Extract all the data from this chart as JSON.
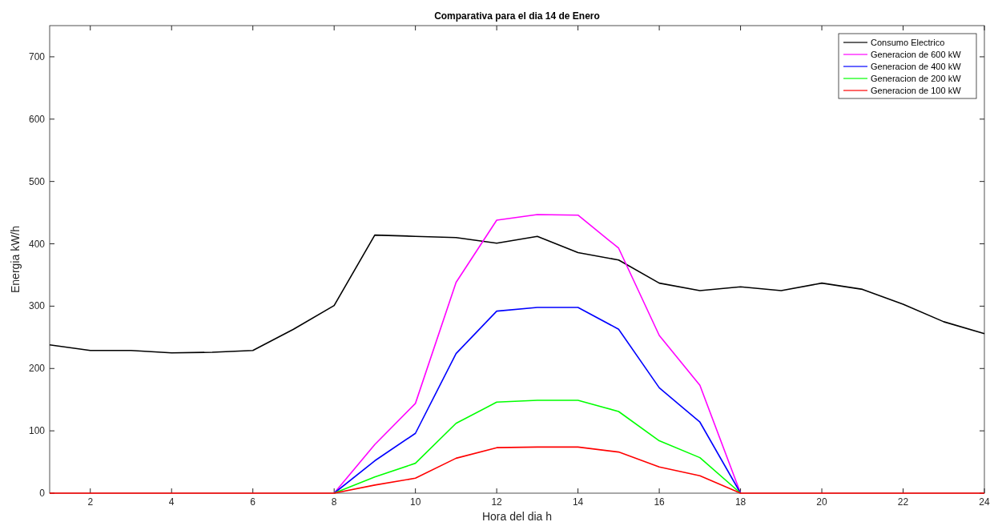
{
  "chart_data": {
    "type": "line",
    "title": "Comparativa para el dia 14 de Enero",
    "xlabel": "Hora del dia h",
    "ylabel": "Energia kW/h",
    "x": [
      1,
      2,
      3,
      4,
      5,
      6,
      7,
      8,
      9,
      10,
      11,
      12,
      13,
      14,
      15,
      16,
      17,
      18,
      19,
      20,
      21,
      22,
      23,
      24
    ],
    "series": [
      {
        "name": "Consumo Electrico",
        "color": "#000000",
        "values": [
          238,
          229,
          229,
          225,
          226,
          229,
          263,
          301,
          414,
          412,
          410,
          401,
          412,
          386,
          374,
          337,
          325,
          331,
          325,
          337,
          327,
          303,
          275,
          256
        ]
      },
      {
        "name": "Generacion de 600 kW",
        "color": "#ff00ff",
        "values": [
          null,
          null,
          null,
          null,
          null,
          null,
          null,
          0,
          78,
          144,
          338,
          438,
          447,
          446,
          393,
          253,
          173,
          0,
          null,
          null,
          null,
          null,
          null,
          null
        ]
      },
      {
        "name": "Generacion de 400 kW",
        "color": "#0000ff",
        "values": [
          null,
          null,
          null,
          null,
          null,
          null,
          null,
          0,
          52,
          96,
          224,
          292,
          298,
          298,
          263,
          169,
          114,
          0,
          null,
          null,
          null,
          null,
          null,
          null
        ]
      },
      {
        "name": "Generacion de 200 kW",
        "color": "#00ff00",
        "values": [
          null,
          null,
          null,
          null,
          null,
          null,
          null,
          0,
          26,
          48,
          112,
          146,
          149,
          149,
          131,
          84,
          57,
          0,
          null,
          null,
          null,
          null,
          null,
          null
        ]
      },
      {
        "name": "Generacion de 100 kW",
        "color": "#ff0000",
        "values": [
          0,
          0,
          0,
          0,
          0,
          0,
          0,
          0,
          13,
          24,
          56,
          73,
          74,
          74,
          66,
          42,
          28,
          0,
          0,
          0,
          0,
          0,
          0,
          0
        ]
      }
    ],
    "xlim": [
      1,
      24
    ],
    "xticks": [
      2,
      4,
      6,
      8,
      10,
      12,
      14,
      16,
      18,
      20,
      22,
      24
    ],
    "ylim": [
      0,
      750
    ],
    "yticks": [
      0,
      100,
      200,
      300,
      400,
      500,
      600,
      700
    ],
    "legend": "top right",
    "grid": false
  }
}
